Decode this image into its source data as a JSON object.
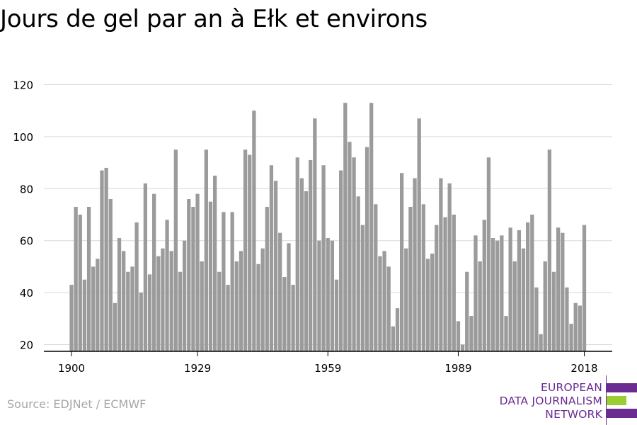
{
  "title": "Jours de gel par an à Ełk et environs",
  "source": "Source: EDJNet / ECMWF",
  "logo": {
    "lines": [
      "EUROPEAN",
      "DATA JOURNALISM",
      "NETWORK"
    ],
    "colors": {
      "purple": "#6a2c91",
      "green": "#9acd32"
    }
  },
  "colors": {
    "bar": "#9b9b9b",
    "grid": "#d9d9d9",
    "axis": "#000000",
    "tick_text": "#000000"
  },
  "chart_data": {
    "type": "bar",
    "title": "Jours de gel par an à Ełk et environs",
    "xlabel": "",
    "ylabel": "",
    "x_tick_labels": [
      "1900",
      "1929",
      "1959",
      "1989",
      "2018"
    ],
    "y_ticks": [
      20,
      40,
      60,
      80,
      100,
      120
    ],
    "ylim": [
      17,
      122
    ],
    "grid": "horizontal",
    "start_year": 1900,
    "end_year": 2018,
    "years": [
      1900,
      1901,
      1902,
      1903,
      1904,
      1905,
      1906,
      1907,
      1908,
      1909,
      1910,
      1911,
      1912,
      1913,
      1914,
      1915,
      1916,
      1917,
      1918,
      1919,
      1920,
      1921,
      1922,
      1923,
      1924,
      1925,
      1926,
      1927,
      1928,
      1929,
      1930,
      1931,
      1932,
      1933,
      1934,
      1935,
      1936,
      1937,
      1938,
      1939,
      1940,
      1941,
      1942,
      1943,
      1944,
      1945,
      1946,
      1947,
      1948,
      1949,
      1950,
      1951,
      1952,
      1953,
      1954,
      1955,
      1956,
      1957,
      1958,
      1959,
      1960,
      1961,
      1962,
      1963,
      1964,
      1965,
      1966,
      1967,
      1968,
      1969,
      1970,
      1971,
      1972,
      1973,
      1974,
      1975,
      1976,
      1977,
      1978,
      1979,
      1980,
      1981,
      1982,
      1983,
      1984,
      1985,
      1986,
      1987,
      1988,
      1989,
      1990,
      1991,
      1992,
      1993,
      1994,
      1995,
      1996,
      1997,
      1998,
      1999,
      2000,
      2001,
      2002,
      2003,
      2004,
      2005,
      2006,
      2007,
      2008,
      2009,
      2010,
      2011,
      2012,
      2013,
      2014,
      2015,
      2016,
      2017,
      2018
    ],
    "values": [
      43,
      73,
      70,
      45,
      73,
      50,
      53,
      87,
      88,
      76,
      36,
      61,
      56,
      48,
      50,
      67,
      40,
      82,
      47,
      78,
      54,
      57,
      68,
      56,
      95,
      48,
      60,
      76,
      73,
      78,
      52,
      95,
      75,
      85,
      48,
      71,
      43,
      71,
      52,
      56,
      95,
      93,
      110,
      51,
      57,
      73,
      89,
      83,
      63,
      46,
      59,
      43,
      92,
      84,
      79,
      91,
      107,
      60,
      89,
      61,
      60,
      45,
      87,
      113,
      98,
      92,
      77,
      66,
      96,
      113,
      74,
      54,
      56,
      50,
      27,
      34,
      86,
      57,
      73,
      84,
      107,
      74,
      53,
      55,
      66,
      84,
      69,
      82,
      70,
      29,
      20,
      48,
      31,
      62,
      52,
      68,
      92,
      61,
      60,
      62,
      31,
      65,
      52,
      64,
      57,
      67,
      70,
      42,
      24,
      52,
      95,
      48,
      65,
      63,
      42,
      28,
      36,
      35,
      66
    ]
  }
}
